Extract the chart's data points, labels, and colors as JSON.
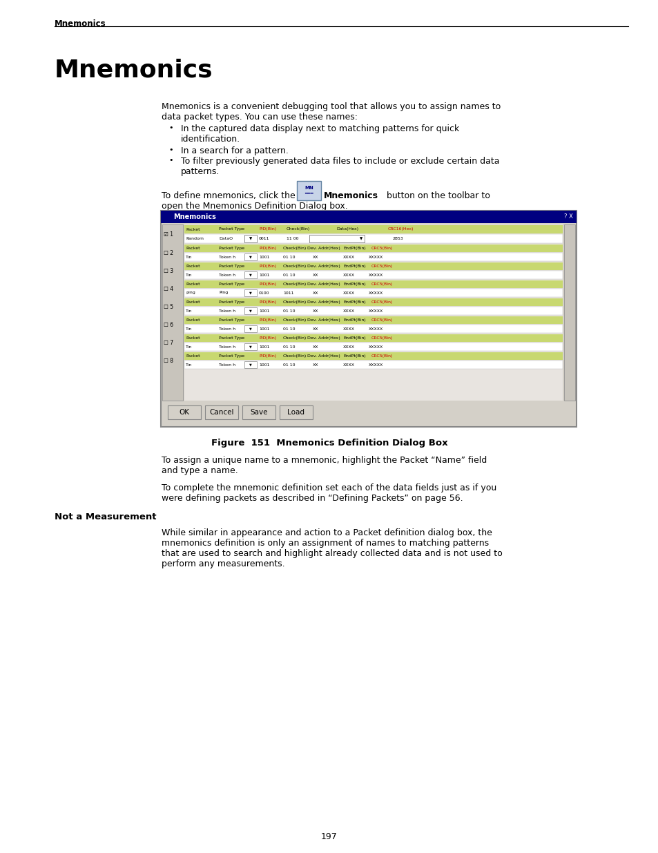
{
  "page_title": "Mnemonics",
  "section_title": "Mnemonics",
  "body_line1": "Mnemonics is a convenient debugging tool that allows you to assign names to",
  "body_line2": "data packet types. You can use these names:",
  "bullet_1a": "In the captured data display next to matching patterns for quick",
  "bullet_1b": "identification.",
  "bullet_2": "In a search for a pattern.",
  "bullet_3a": "To filter previously generated data files to include or exclude certain data",
  "bullet_3b": "patterns.",
  "para_click_1": "To define mnemonics, click the",
  "para_click_bold": "Mnemonics",
  "para_click_2": "button on the toolbar to",
  "para_click_3": "open the Mnemonics Definition Dialog box.",
  "figure_caption": "Figure  151  Mnemonics Definition Dialog Box",
  "para_after1_line1": "To assign a unique name to a mnemonic, highlight the Packet “Name” field",
  "para_after1_line2": "and type a name.",
  "para_after2_line1": "To complete the mnemonic definition set each of the data fields just as if you",
  "para_after2_line2": "were defining packets as described in “Defining Packets” on page 56.",
  "subsection_title": "Not a Measurement",
  "sub_body_line1": "While similar in appearance and action to a Packet definition dialog box, the",
  "sub_body_line2": "mnemonics definition is only an assignment of names to matching patterns",
  "sub_body_line3": "that are used to search and highlight already collected data and is not used to",
  "sub_body_line4": "perform any measurements.",
  "page_number": "197",
  "bg_color": "#ffffff",
  "text_color": "#000000",
  "lm": 0.083,
  "cl": 0.245,
  "dialog_lm": 0.247,
  "dialog_rm": 0.875,
  "dlg_green": "#c8d870",
  "dlg_red": "#cc4444",
  "dlg_blue_hdr": "#000080",
  "dlg_grey": "#d4d0c8",
  "dlg_white": "#ffffff",
  "dlg_ltgrey": "#e8e4e0"
}
